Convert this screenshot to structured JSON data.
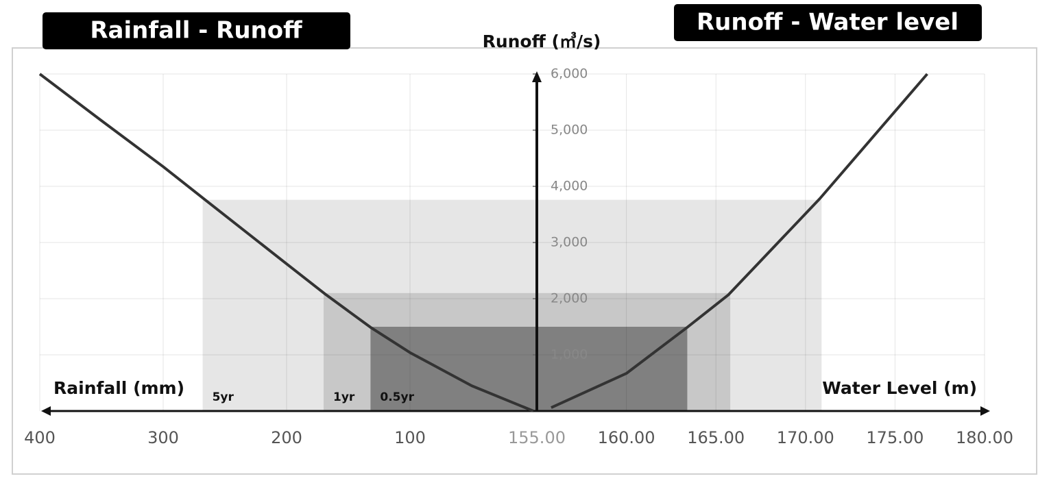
{
  "chart_data": [
    {
      "type": "line",
      "title": "Rainfall - Runoff",
      "x_label": "Rainfall (mm)",
      "y_label": "Runoff (㎥/s)",
      "x": [
        0,
        50,
        100,
        132,
        168,
        200,
        266,
        300,
        350,
        400
      ],
      "series": [
        {
          "color": "#333333",
          "values": [
            0,
            450,
            1040,
            1490,
            2070,
            2620,
            3760,
            4350,
            5170,
            6000
          ]
        }
      ],
      "xlim": [
        400,
        0
      ],
      "xticks": [
        400,
        300,
        200,
        100
      ],
      "ylim": [
        0,
        6000
      ],
      "yticks": [
        {
          "value": 1000,
          "label": "1,000"
        },
        {
          "value": 2000,
          "label": "2,000"
        },
        {
          "value": 3000,
          "label": "3,000"
        },
        {
          "value": 4000,
          "label": "4,000"
        },
        {
          "value": 5000,
          "label": "5,000"
        },
        {
          "value": 6000,
          "label": "6,000"
        }
      ],
      "grid": true,
      "bands": [
        {
          "name": "5yr",
          "color": "#e6e6e6",
          "x": 268,
          "y": 3760
        },
        {
          "name": "1yr",
          "color": "#c8c8c8",
          "x": 170,
          "y": 2100
        },
        {
          "name": "0.5yr",
          "color": "#808080",
          "x": 132,
          "y": 1500
        }
      ]
    },
    {
      "type": "line",
      "title": "Runoff - Water level",
      "x_label": "Water Level (m)",
      "x": [
        155.8,
        160,
        163.4,
        165.7,
        170.8,
        176.8
      ],
      "series": [
        {
          "color": "#333333",
          "values": [
            60,
            670,
            1490,
            2070,
            3780,
            6000
          ]
        }
      ],
      "xlim": [
        155,
        180
      ],
      "xticks": [
        {
          "value": 155,
          "label": "155.00"
        },
        {
          "value": 160,
          "label": "160.00"
        },
        {
          "value": 165,
          "label": "165.00"
        },
        {
          "value": 170,
          "label": "170.00"
        },
        {
          "value": 175,
          "label": "175.00"
        },
        {
          "value": 180,
          "label": "180.00"
        }
      ],
      "ylim": [
        0,
        6000
      ],
      "grid": true,
      "bands": [
        {
          "color": "#e6e6e6",
          "x": 170.9,
          "y": 3760
        },
        {
          "color": "#c8c8c8",
          "x": 165.8,
          "y": 2100
        },
        {
          "color": "#808080",
          "x": 163.4,
          "y": 1500
        }
      ]
    }
  ]
}
